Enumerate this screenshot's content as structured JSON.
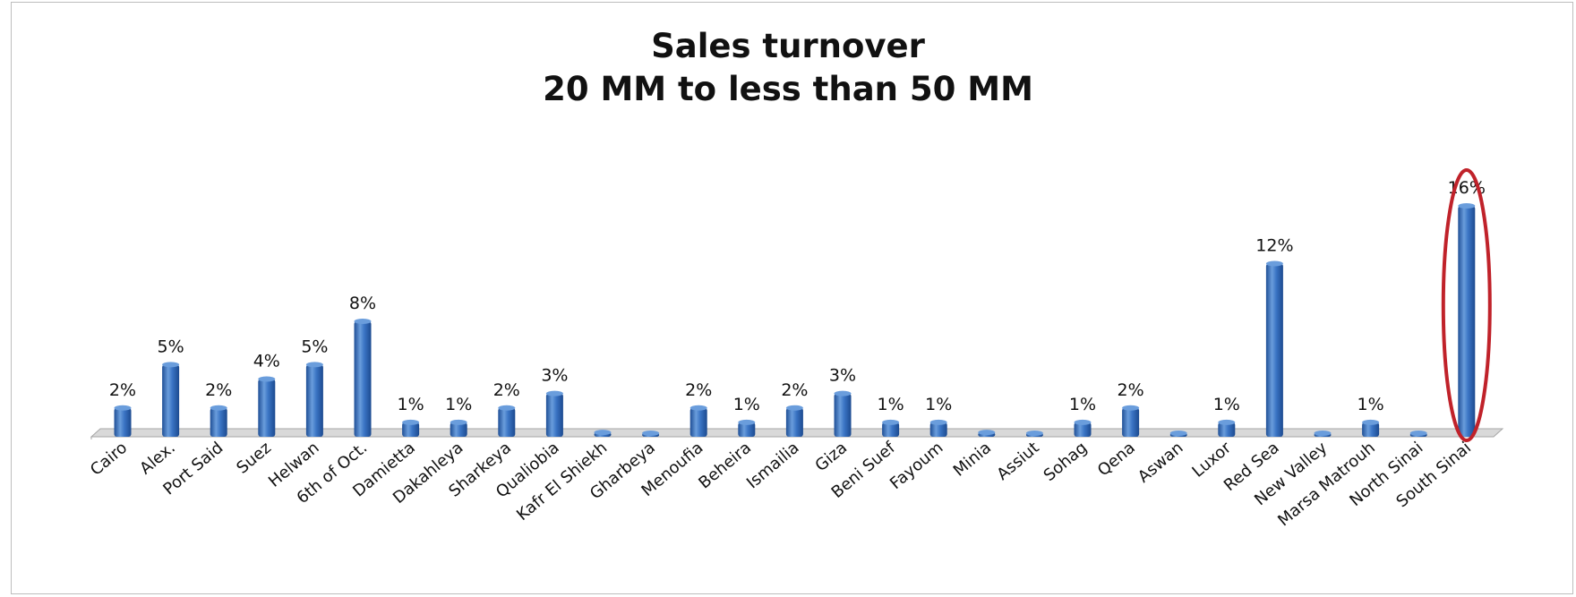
{
  "chart_data": {
    "type": "bar",
    "title": "Sales turnover",
    "subtitle": "20 MM to less than 50 MM",
    "categories": [
      "Cairo",
      "Alex.",
      "Port Said",
      "Suez",
      "Helwan",
      "6th of Oct.",
      "Damietta",
      "Dakahleya",
      "Sharkeya",
      "Qualiobia",
      "Kafr El Shiekh",
      "Gharbeya",
      "Menoufia",
      "Beheira",
      "Ismailia",
      "Giza",
      "Beni Suef",
      "Fayoum",
      "Minia",
      "Assiut",
      "Sohag",
      "Qena",
      "Aswan",
      "Luxor",
      "Red Sea",
      "New Valley",
      "Marsa Matrouh",
      "North Sinai",
      "South Sinai"
    ],
    "values": [
      2,
      5,
      2,
      4,
      5,
      8,
      1,
      1,
      2,
      3,
      0.3,
      0.2,
      2,
      1,
      2,
      3,
      1,
      1,
      0.3,
      0.2,
      1,
      2,
      0,
      1,
      12,
      0,
      1,
      0,
      16
    ],
    "data_labels": [
      "2%",
      "5%",
      "2%",
      "4%",
      "5%",
      "8%",
      "1%",
      "1%",
      "2%",
      "3%",
      "",
      "",
      "2%",
      "1%",
      "2%",
      "3%",
      "1%",
      "1%",
      "",
      "",
      "1%",
      "2%",
      "",
      "1%",
      "12%",
      "",
      "1%",
      "",
      "16%"
    ],
    "ylim": [
      0,
      16
    ],
    "xlabel": "",
    "ylabel": "",
    "grid": false,
    "legend": "none",
    "highlight": "South Sinai",
    "colors": {
      "bar": "#3a74c4",
      "bar_dark": "#1f4f96",
      "bar_light": "#6a9ddc",
      "floor": "#d9d9d9",
      "highlight": "#c0222a"
    }
  }
}
